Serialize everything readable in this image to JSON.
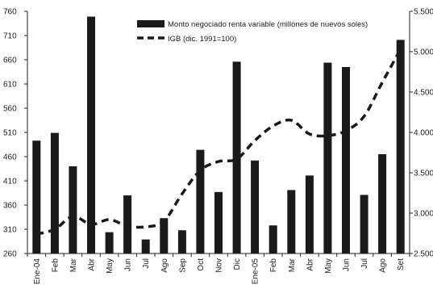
{
  "chart_data": {
    "type": "bar",
    "categories": [
      "Ene-04",
      "Feb",
      "Mar",
      "Abr",
      "May",
      "Jun",
      "Jul",
      "Ago",
      "Sep",
      "Oct",
      "Nov",
      "Dic",
      "Ene-05",
      "Feb",
      "Mar",
      "Abr",
      "May",
      "Jun",
      "Jul",
      "Ago",
      "Set"
    ],
    "series": [
      {
        "name": "Monto negociado renta variable (millones de nuevos soles)",
        "type": "bar",
        "axis": "left",
        "color": "#1a1a1a",
        "values": [
          493,
          509,
          440,
          749,
          304,
          380,
          289,
          333,
          308,
          474,
          387,
          656,
          452,
          318,
          391,
          421,
          654,
          645,
          381,
          465,
          701
        ]
      },
      {
        "name": "IGB (dic. 1991=100)",
        "type": "line",
        "axis": "right",
        "style": "dashed",
        "color": "#1a1a1a",
        "values": [
          2740,
          2800,
          2960,
          2860,
          2920,
          2840,
          2830,
          2900,
          3240,
          3530,
          3640,
          3670,
          3900,
          4080,
          4150,
          3980,
          3960,
          4020,
          4200,
          4620,
          5030
        ]
      }
    ],
    "y_left": {
      "ylim": [
        260,
        760
      ],
      "ticks": [
        "260",
        "310",
        "360",
        "410",
        "460",
        "510",
        "560",
        "610",
        "660",
        "710",
        "760"
      ]
    },
    "y_right": {
      "ylim": [
        2500,
        5500
      ],
      "ticks": [
        "2.500",
        "3.000",
        "3.500",
        "4.000",
        "4.500",
        "5.000",
        "5.500"
      ]
    },
    "grid": false,
    "legend_position": "top-center"
  }
}
